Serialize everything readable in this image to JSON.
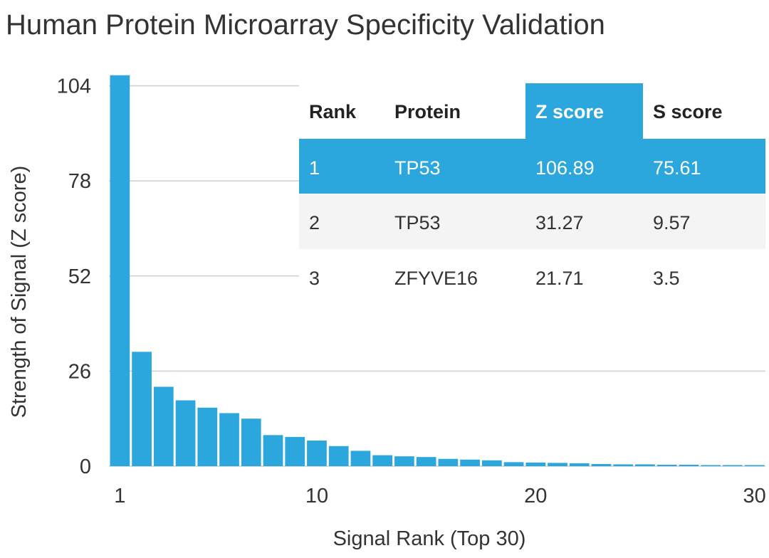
{
  "chart_data": {
    "type": "bar",
    "title": "Human Protein Microarray Specificity Validation",
    "xlabel": "Signal Rank (Top 30)",
    "ylabel": "Strength of Signal (Z score)",
    "x": [
      1,
      2,
      3,
      4,
      5,
      6,
      7,
      8,
      9,
      10,
      11,
      12,
      13,
      14,
      15,
      16,
      17,
      18,
      19,
      20,
      21,
      22,
      23,
      24,
      25,
      26,
      27,
      28,
      29,
      30
    ],
    "values": [
      106.89,
      31.27,
      21.71,
      18.0,
      16.0,
      14.5,
      13.0,
      8.5,
      8.0,
      7.0,
      5.5,
      4.2,
      3.0,
      2.7,
      2.5,
      2.0,
      1.8,
      1.6,
      1.1,
      1.0,
      0.9,
      0.8,
      0.6,
      0.5,
      0.5,
      0.4,
      0.4,
      0.3,
      0.3,
      0.3
    ],
    "xticks": [
      1,
      10,
      20,
      30
    ],
    "yticks": [
      0,
      26,
      52,
      78,
      104
    ],
    "ylim": [
      0,
      108
    ],
    "xlim": [
      0.5,
      30.5
    ],
    "grid": true,
    "bar_color": "#2ba7de"
  },
  "table": {
    "headers": [
      "Rank",
      "Protein",
      "Z score",
      "S score"
    ],
    "highlight_column": 2,
    "highlight_row": 0,
    "highlight_color": "#2ba7de",
    "rows": [
      [
        "1",
        "TP53",
        "106.89",
        "75.61"
      ],
      [
        "2",
        "TP53",
        "31.27",
        "9.57"
      ],
      [
        "3",
        "ZFYVE16",
        "21.71",
        "3.5"
      ]
    ]
  }
}
